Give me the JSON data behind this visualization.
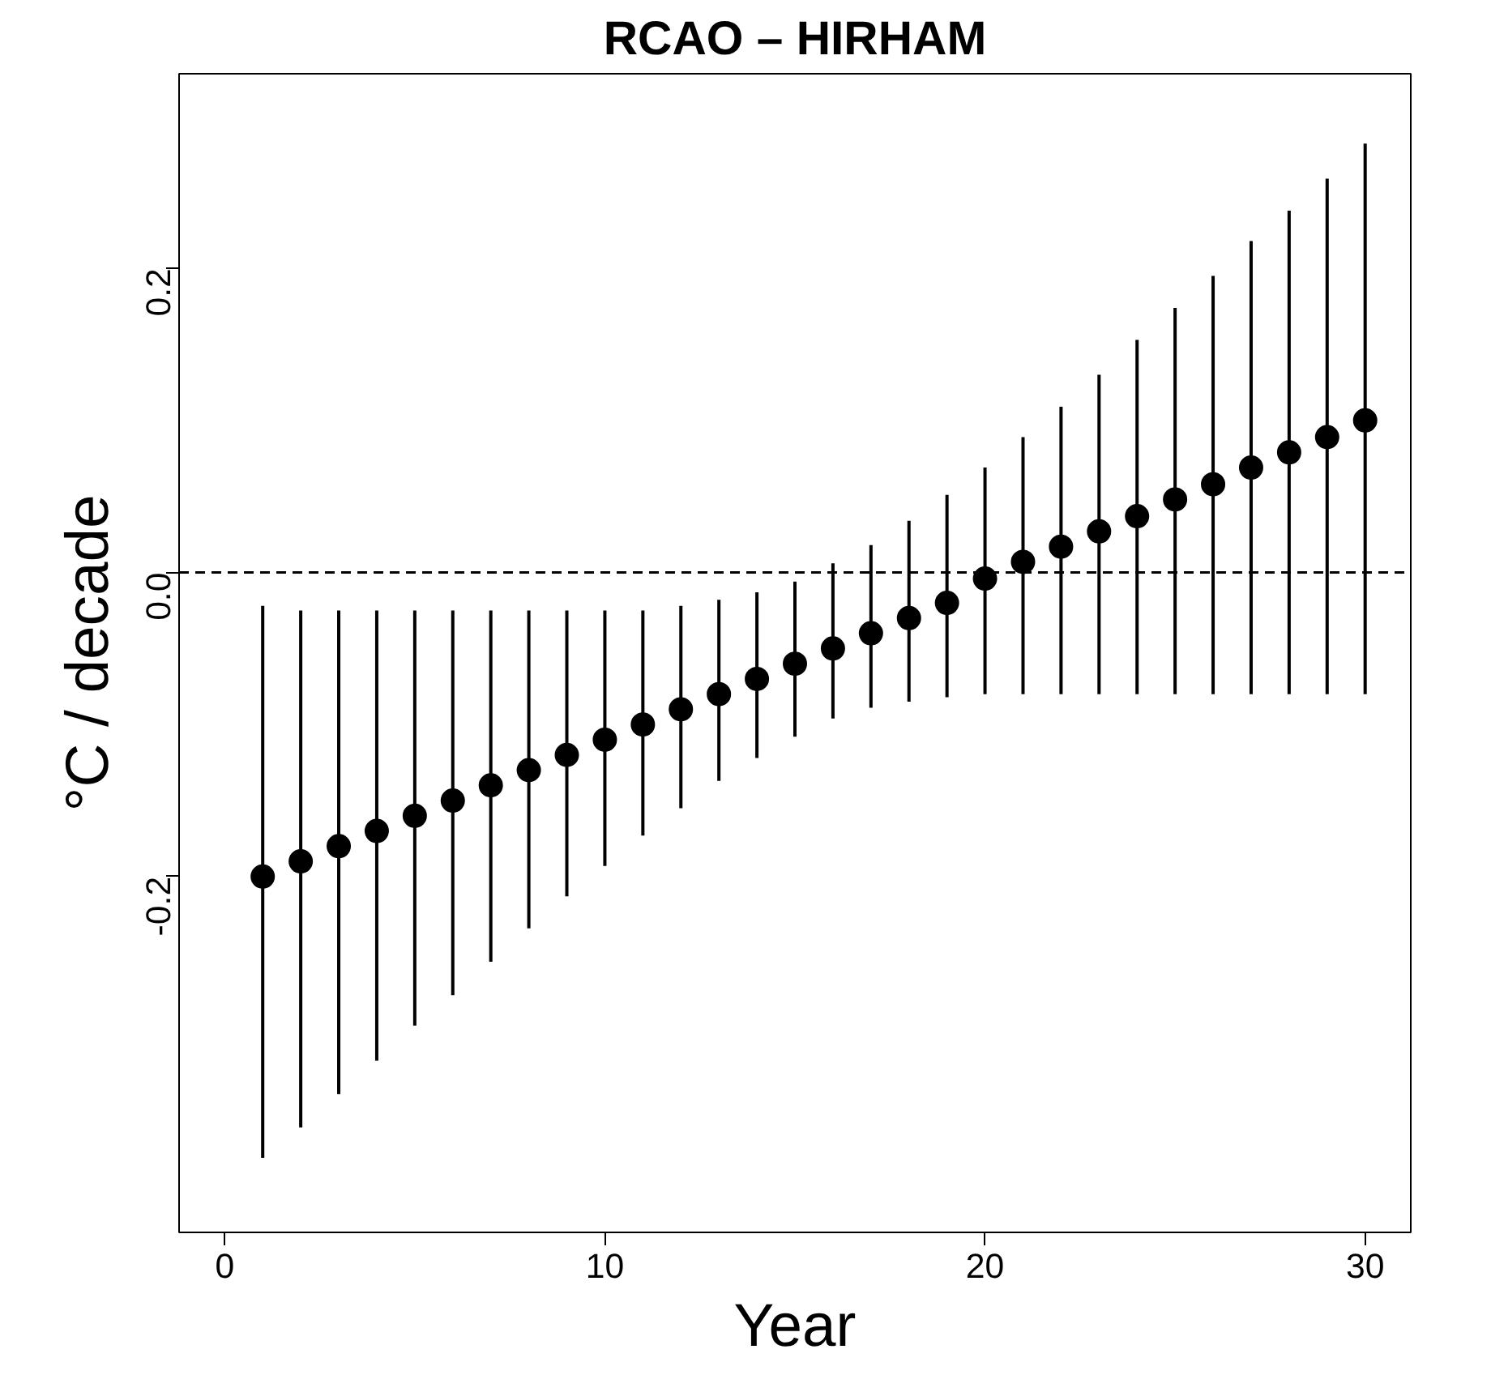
{
  "chart_data": {
    "type": "scatter",
    "title": "RCAO – HIRHAM",
    "xlabel": "Year",
    "ylabel": "°C / decade",
    "x": [
      1,
      2,
      3,
      4,
      5,
      6,
      7,
      8,
      9,
      10,
      11,
      12,
      13,
      14,
      15,
      16,
      17,
      18,
      19,
      20,
      21,
      22,
      23,
      24,
      25,
      26,
      27,
      28,
      29,
      30
    ],
    "series": [
      {
        "color": "#000000",
        "values": [
          -0.2,
          -0.19,
          -0.18,
          -0.17,
          -0.16,
          -0.15,
          -0.14,
          -0.13,
          -0.12,
          -0.11,
          -0.1,
          -0.09,
          -0.08,
          -0.07,
          -0.06,
          -0.05,
          -0.04,
          -0.03,
          -0.02,
          -0.004,
          0.007,
          0.017,
          0.027,
          0.037,
          0.048,
          0.058,
          0.069,
          0.079,
          0.089,
          0.1
        ],
        "errors": [
          [
            -0.385,
            -0.022
          ],
          [
            -0.365,
            -0.025
          ],
          [
            -0.343,
            -0.025
          ],
          [
            -0.321,
            -0.025
          ],
          [
            -0.298,
            -0.025
          ],
          [
            -0.278,
            -0.025
          ],
          [
            -0.256,
            -0.025
          ],
          [
            -0.234,
            -0.025
          ],
          [
            -0.213,
            -0.025
          ],
          [
            -0.193,
            -0.025
          ],
          [
            -0.173,
            -0.025
          ],
          [
            -0.155,
            -0.022
          ],
          [
            -0.137,
            -0.018
          ],
          [
            -0.122,
            -0.013
          ],
          [
            -0.108,
            -0.006
          ],
          [
            -0.096,
            0.006
          ],
          [
            -0.089,
            0.018
          ],
          [
            -0.085,
            0.034
          ],
          [
            -0.082,
            0.051
          ],
          [
            -0.08,
            0.069
          ],
          [
            -0.08,
            0.089
          ],
          [
            -0.08,
            0.109
          ],
          [
            -0.08,
            0.13
          ],
          [
            -0.08,
            0.153
          ],
          [
            -0.08,
            0.174
          ],
          [
            -0.08,
            0.195
          ],
          [
            -0.08,
            0.218
          ],
          [
            -0.08,
            0.238
          ],
          [
            -0.08,
            0.259
          ],
          [
            -0.08,
            0.282
          ]
        ]
      }
    ],
    "xlim": [
      -1.2,
      31.2
    ],
    "ylim": [
      -0.434,
      0.328
    ],
    "xticks": [
      0,
      10,
      20,
      30
    ],
    "yticks": [
      {
        "value": -0.2,
        "label": "-0.2"
      },
      {
        "value": 0,
        "label": "0.0"
      },
      {
        "value": 0.2,
        "label": "0.2"
      }
    ],
    "ref_lines": [
      {
        "axis": "y",
        "value": 0,
        "line_style": "dashed",
        "color": "#000000"
      }
    ],
    "marker": "circle",
    "grid": false
  }
}
